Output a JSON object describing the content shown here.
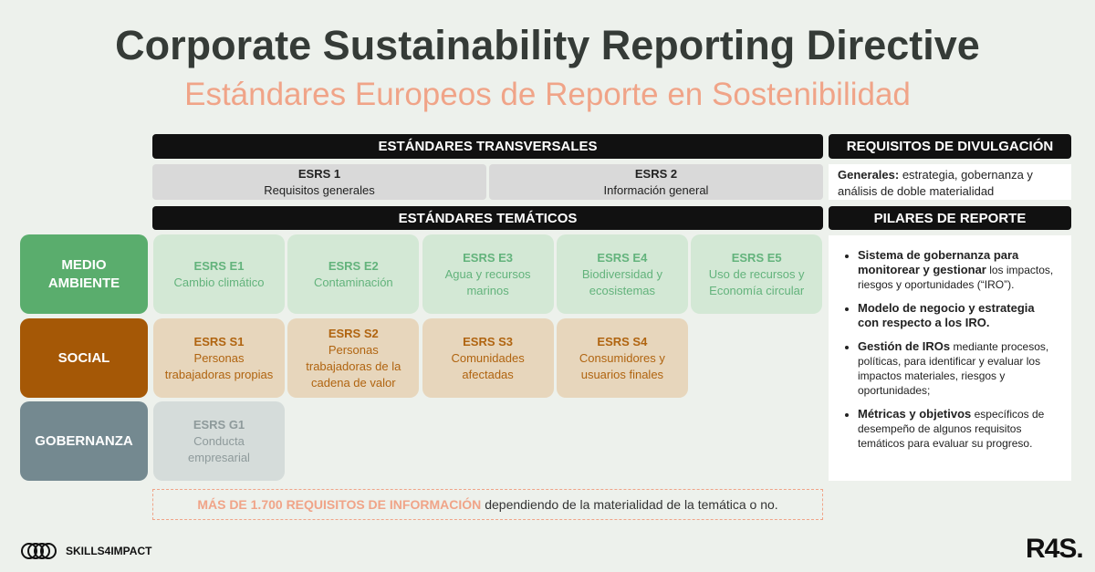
{
  "header": {
    "title": "Corporate Sustainability Reporting Directive",
    "subtitle": "Estándares Europeos de Reporte en Sostenibilidad"
  },
  "transversal": {
    "heading": "ESTÁNDARES TRANSVERSALES",
    "items": [
      {
        "code": "ESRS 1",
        "label": "Requisitos generales"
      },
      {
        "code": "ESRS 2",
        "label": "Información general"
      }
    ]
  },
  "thematic_heading": "ESTÁNDARES TEMÁTICOS",
  "rows": [
    {
      "label": "MEDIO AMBIENTE",
      "items": [
        {
          "code": "ESRS E1",
          "label": "Cambio climático"
        },
        {
          "code": "ESRS E2",
          "label": "Contaminación"
        },
        {
          "code": "ESRS E3",
          "label": "Agua y recursos marinos"
        },
        {
          "code": "ESRS E4",
          "label": "Biodiversidad y ecosistemas"
        },
        {
          "code": "ESRS E5",
          "label": "Uso de recursos y Economía circular"
        }
      ]
    },
    {
      "label": "SOCIAL",
      "items": [
        {
          "code": "ESRS S1",
          "label": "Personas trabajadoras propias"
        },
        {
          "code": "ESRS S2",
          "label": "Personas trabajadoras de la cadena de valor"
        },
        {
          "code": "ESRS S3",
          "label": "Comunidades afectadas"
        },
        {
          "code": "ESRS S4",
          "label": "Consumidores y usuarios finales"
        }
      ]
    },
    {
      "label": "GOBERNANZA",
      "items": [
        {
          "code": "ESRS G1",
          "label": "Conducta empresarial"
        }
      ]
    }
  ],
  "disclosure": {
    "heading": "REQUISITOS DE DIVULGACIÓN",
    "bold": "Generales:",
    "text": "estrategia, gobernanza y análisis de doble materialidad"
  },
  "pillars": {
    "heading": "PILARES DE REPORTE",
    "items": [
      {
        "bold": "Sistema de gobernanza para monitorear y gestionar",
        "text": "los impactos, riesgos y oportunidades (“IRO”)."
      },
      {
        "bold": "Modelo de negocio y estrategia con respecto a los IRO."
      },
      {
        "bold": "Gestión de IROs",
        "text": "mediante procesos, políticas, para identificar y evaluar los impactos materiales, riesgos y oportunidades;"
      },
      {
        "bold": "Métricas y objetivos",
        "text": "específicos de desempeño de algunos requisitos temáticos para evaluar su progreso."
      }
    ]
  },
  "footer_note": {
    "highlight": "MÁS DE 1.700 REQUISITOS DE INFORMACIÓN",
    "text": "dependiendo de la materialidad de la temática o no."
  },
  "logos": {
    "left": "SKILLS4IMPACT",
    "right": "R4S."
  }
}
